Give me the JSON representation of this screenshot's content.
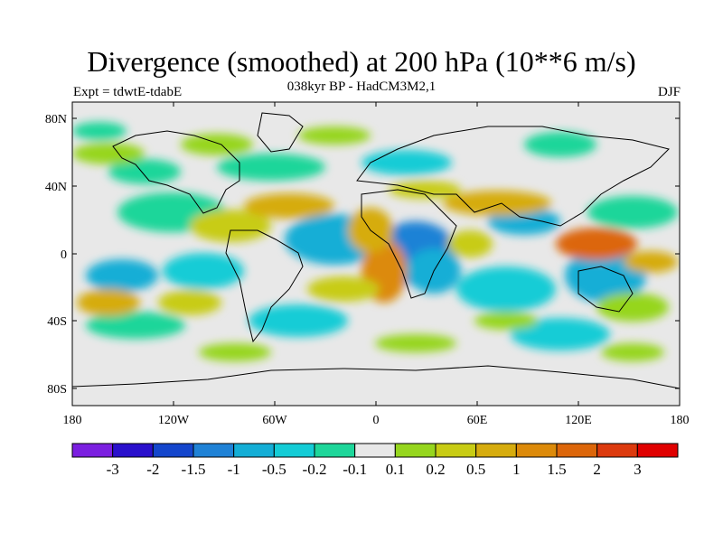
{
  "map": {
    "title": "Divergence (smoothed) at 200 hPa (10**6 m/s)",
    "subtitle": "038kyr BP - HadCM3M2,1",
    "left_label": "Expt = tdwtE-tdabE",
    "right_label": "DJF",
    "projection": "cylindrical equidistant",
    "background_color": "#e8e8e8",
    "lat_ticks": [
      "80N",
      "40N",
      "0",
      "40S",
      "80S"
    ],
    "lon_ticks": [
      "180",
      "120W",
      "60W",
      "0",
      "60E",
      "120E",
      "180"
    ]
  },
  "colorbar": {
    "colors": [
      "#7b1fe0",
      "#2a10cc",
      "#1446cc",
      "#1f82d6",
      "#14aed6",
      "#14ccd6",
      "#1ed69a",
      "#e8e8e8",
      "#96d61e",
      "#c8cc14",
      "#d6ac0e",
      "#dc8a0a",
      "#dc660a",
      "#dc3a0e",
      "#e00000"
    ],
    "labels": [
      "-3",
      "-2",
      "-1.5",
      "-1",
      "-0.5",
      "-0.2",
      "-0.1",
      "0.1",
      "0.2",
      "0.5",
      "1",
      "1.5",
      "2",
      "3"
    ]
  }
}
